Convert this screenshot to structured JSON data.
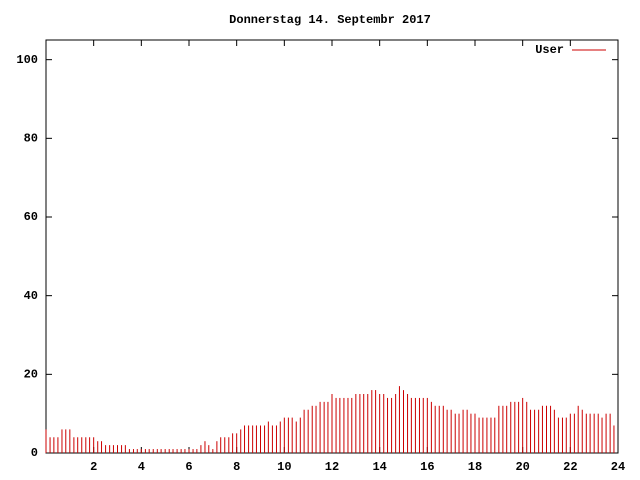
{
  "chart_data": {
    "type": "impulse",
    "title": "Donnerstag 14. Septembr 2017",
    "series": [
      {
        "name": "User",
        "color": "#cc0000",
        "values": [
          6,
          4,
          4,
          4,
          6,
          6,
          6,
          4,
          4,
          4,
          4,
          4,
          4,
          3,
          3,
          2,
          2,
          2,
          2,
          2,
          2,
          1,
          1,
          1,
          1,
          1,
          1,
          1,
          1,
          1,
          1,
          1,
          1,
          1,
          1,
          1,
          1,
          1,
          1,
          2,
          3,
          2,
          1,
          3,
          4,
          4,
          4,
          5,
          5,
          6,
          7,
          7,
          7,
          7,
          7,
          7,
          8,
          7,
          7,
          8,
          9,
          9,
          9,
          8,
          9,
          11,
          11,
          12,
          12,
          13,
          13,
          13,
          15,
          14,
          14,
          14,
          14,
          14,
          15,
          15,
          15,
          15,
          16,
          16,
          15,
          15,
          14,
          14,
          15,
          17,
          16,
          15,
          14,
          14,
          14,
          14,
          14,
          13,
          12,
          12,
          12,
          11,
          11,
          10,
          10,
          11,
          11,
          10,
          10,
          9,
          9,
          9,
          9,
          9,
          12,
          12,
          12,
          13,
          13,
          13,
          14,
          13,
          11,
          11,
          11,
          12,
          12,
          12,
          11,
          9,
          9,
          9,
          10,
          10,
          12,
          11,
          10,
          10,
          10,
          10,
          9,
          10,
          10,
          7
        ]
      }
    ],
    "x": [
      0,
      0.17,
      0.33,
      0.5,
      0.67,
      0.83,
      1,
      1.17,
      1.33,
      1.5,
      1.67,
      1.83,
      2,
      2.17,
      2.33,
      2.5,
      2.67,
      2.83,
      3,
      3.17,
      3.33,
      3.5,
      3.67,
      3.83,
      4,
      4.17,
      4.33,
      4.5,
      4.67,
      4.83,
      5,
      5.17,
      5.33,
      5.5,
      5.67,
      5.83,
      6,
      6.17,
      6.33,
      6.5,
      6.67,
      6.83,
      7,
      7.17,
      7.33,
      7.5,
      7.67,
      7.83,
      8,
      8.17,
      8.33,
      8.5,
      8.67,
      8.83,
      9,
      9.17,
      9.33,
      9.5,
      9.67,
      9.83,
      10,
      10.17,
      10.33,
      10.5,
      10.67,
      10.83,
      11,
      11.17,
      11.33,
      11.5,
      11.67,
      11.83,
      12,
      12.17,
      12.33,
      12.5,
      12.67,
      12.83,
      13,
      13.17,
      13.33,
      13.5,
      13.67,
      13.83,
      14,
      14.17,
      14.33,
      14.5,
      14.67,
      14.83,
      15,
      15.17,
      15.33,
      15.5,
      15.67,
      15.83,
      16,
      16.17,
      16.33,
      16.5,
      16.67,
      16.83,
      17,
      17.17,
      17.33,
      17.5,
      17.67,
      17.83,
      18,
      18.17,
      18.33,
      18.5,
      18.67,
      18.83,
      19,
      19.17,
      19.33,
      19.5,
      19.67,
      19.83,
      20,
      20.17,
      20.33,
      20.5,
      20.67,
      20.83,
      21,
      21.17,
      21.33,
      21.5,
      21.67,
      21.83,
      22,
      22.17,
      22.33,
      22.5,
      22.67,
      22.83,
      23,
      23.17,
      23.33,
      23.5,
      23.67,
      23.83
    ],
    "xlim": [
      0,
      24
    ],
    "xticks": [
      2,
      4,
      6,
      8,
      10,
      12,
      14,
      16,
      18,
      20,
      22,
      24
    ],
    "ylim": [
      0,
      105
    ],
    "yticks": [
      0,
      20,
      40,
      60,
      80,
      100
    ],
    "legend": "top-right"
  }
}
